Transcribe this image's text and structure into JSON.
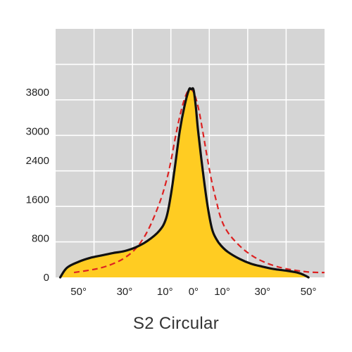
{
  "chart_data": {
    "type": "area",
    "title": "S2 Circular",
    "xlabel": "",
    "ylabel": "",
    "x_tick_labels": [
      "50°",
      "30°",
      "10°",
      "0°",
      "10°",
      "30°",
      "50°"
    ],
    "x_tick_values": [
      -50,
      -30,
      -10,
      0,
      10,
      30,
      50
    ],
    "y_tick_labels": [
      "0",
      "800",
      "1600",
      "2400",
      "3000",
      "3800"
    ],
    "y_tick_values": [
      0,
      800,
      1600,
      2400,
      3000,
      3800
    ],
    "xlim": [
      -60,
      57
    ],
    "ylim": [
      0,
      5100
    ],
    "grid": true,
    "legend": "none",
    "series": [
      {
        "style": "solid-filled",
        "color": "#111111",
        "fill": "#ffcc22",
        "x": [
          -58,
          -55,
          -50,
          -45,
          -40,
          -35,
          -30,
          -25,
          -20,
          -15,
          -12,
          -10,
          -8,
          -6,
          -4,
          -2,
          -1,
          0,
          1,
          2,
          4,
          6,
          8,
          10,
          12,
          15,
          20,
          25,
          30,
          35,
          40,
          45,
          48,
          50
        ],
        "y": [
          0,
          200,
          320,
          400,
          450,
          500,
          540,
          620,
          750,
          950,
          1200,
          1650,
          2300,
          3000,
          3500,
          3850,
          3860,
          3850,
          3500,
          3000,
          2200,
          1500,
          1000,
          780,
          650,
          520,
          380,
          280,
          220,
          170,
          140,
          100,
          50,
          0
        ]
      },
      {
        "style": "dashed",
        "color": "#dd2222",
        "x": [
          -52,
          -45,
          -40,
          -35,
          -30,
          -25,
          -20,
          -15,
          -12,
          -10,
          -8,
          -6,
          -4,
          -2,
          0,
          2,
          4,
          6,
          8,
          10,
          12,
          15,
          20,
          25,
          30,
          35,
          40,
          45,
          50,
          55,
          57
        ],
        "y": [
          100,
          150,
          200,
          280,
          400,
          600,
          950,
          1500,
          1950,
          2350,
          2850,
          3300,
          3650,
          3850,
          3800,
          3500,
          3000,
          2450,
          1950,
          1550,
          1200,
          920,
          650,
          460,
          330,
          240,
          180,
          140,
          110,
          100,
          100
        ]
      }
    ]
  }
}
